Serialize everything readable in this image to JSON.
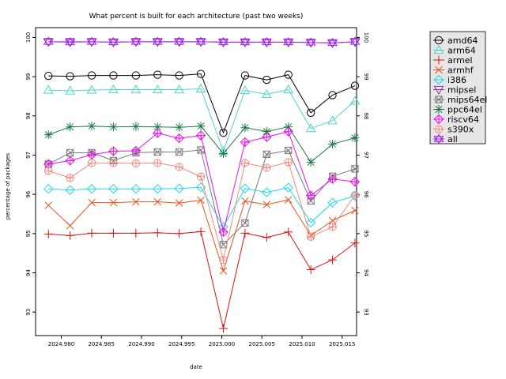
{
  "chart_data": {
    "type": "line",
    "title": "What percent is built for each architecture (past two weeks)",
    "xlabel": "date",
    "ylabel": "percentage of packages",
    "xlim": [
      2024.9768,
      2025.0168
    ],
    "ylim": [
      92.4,
      100.25
    ],
    "x_ticks": [
      "2024.980",
      "2024.985",
      "2024.990",
      "2024.995",
      "2025.000",
      "2025.005",
      "2025.010",
      "2025.015"
    ],
    "y_ticks": [
      "93",
      "94",
      "95",
      "96",
      "97",
      "98",
      "99",
      "100"
    ],
    "y_ticks_right": [
      "93",
      "94",
      "95",
      "96",
      "97",
      "98",
      "99",
      "100"
    ],
    "grid": false,
    "legend_position": "outside-right",
    "x": [
      2024.9784,
      2024.9811,
      2024.9838,
      2024.9865,
      2024.9893,
      2024.992,
      2024.9947,
      2024.9974,
      2025.0002,
      2025.0029,
      2025.0056,
      2025.0083,
      2025.0111,
      2025.0138,
      2025.0166
    ],
    "series": [
      {
        "name": "amd64",
        "color": "#000000",
        "marker": "circle",
        "values": [
          99.02,
          99.01,
          99.03,
          99.03,
          99.03,
          99.05,
          99.03,
          99.07,
          97.57,
          99.03,
          98.92,
          99.05,
          98.08,
          98.53,
          98.77
        ]
      },
      {
        "name": "arm64",
        "color": "#4fd4cf",
        "marker": "triangle-up",
        "values": [
          98.66,
          98.64,
          98.66,
          98.67,
          98.67,
          98.67,
          98.67,
          98.69,
          97.1,
          98.65,
          98.55,
          98.67,
          97.68,
          97.88,
          98.38
        ]
      },
      {
        "name": "armel",
        "color": "#dd1111",
        "marker": "plus",
        "values": [
          94.99,
          94.95,
          95.01,
          95.01,
          95.01,
          95.02,
          95.0,
          95.05,
          92.58,
          95.01,
          94.9,
          95.04,
          94.08,
          94.33,
          94.76
        ]
      },
      {
        "name": "armhf",
        "color": "#e8551b",
        "marker": "cross",
        "values": [
          95.72,
          95.2,
          95.79,
          95.79,
          95.81,
          95.81,
          95.78,
          95.85,
          94.05,
          95.83,
          95.74,
          95.86,
          94.95,
          95.33,
          95.59
        ]
      },
      {
        "name": "i386",
        "color": "#22d6ee",
        "marker": "diamond",
        "values": [
          96.14,
          96.11,
          96.14,
          96.14,
          96.14,
          96.14,
          96.15,
          96.18,
          95.17,
          96.15,
          96.05,
          96.17,
          95.28,
          95.79,
          95.96
        ]
      },
      {
        "name": "mipsel",
        "color": "#9a30ae",
        "marker": "triangle-down",
        "values": [
          99.89,
          99.89,
          99.89,
          99.88,
          99.89,
          99.89,
          99.89,
          99.89,
          99.88,
          99.88,
          99.88,
          99.88,
          99.87,
          99.86,
          99.89
        ]
      },
      {
        "name": "mips64el",
        "color": "#7a7a7a",
        "marker": "square-x",
        "values": [
          96.77,
          97.06,
          97.06,
          96.86,
          97.06,
          97.08,
          97.08,
          97.13,
          94.72,
          95.27,
          97.02,
          97.12,
          95.83,
          96.46,
          96.65
        ]
      },
      {
        "name": "ppc64el",
        "color": "#1d7a4a",
        "marker": "asterisk",
        "values": [
          97.52,
          97.72,
          97.74,
          97.72,
          97.73,
          97.72,
          97.71,
          97.74,
          97.04,
          97.7,
          97.6,
          97.72,
          96.82,
          97.28,
          97.44
        ]
      },
      {
        "name": "riscv64",
        "color": "#ee11ee",
        "marker": "diamond-plus",
        "values": [
          96.77,
          96.86,
          97.01,
          97.1,
          97.11,
          97.56,
          97.43,
          97.5,
          95.04,
          97.33,
          97.46,
          97.6,
          95.97,
          96.39,
          96.32
        ]
      },
      {
        "name": "s390x",
        "color": "#f08a80",
        "marker": "circle-plus",
        "values": [
          96.6,
          96.42,
          96.8,
          96.8,
          96.79,
          96.8,
          96.7,
          96.45,
          94.33,
          96.8,
          96.68,
          96.82,
          94.92,
          95.17,
          95.98
        ]
      },
      {
        "name": "all",
        "color": "#a020f0",
        "marker": "star",
        "values": [
          99.89,
          99.88,
          99.89,
          99.88,
          99.89,
          99.89,
          99.89,
          99.89,
          99.88,
          99.88,
          99.88,
          99.88,
          99.87,
          99.86,
          99.89
        ]
      }
    ]
  }
}
